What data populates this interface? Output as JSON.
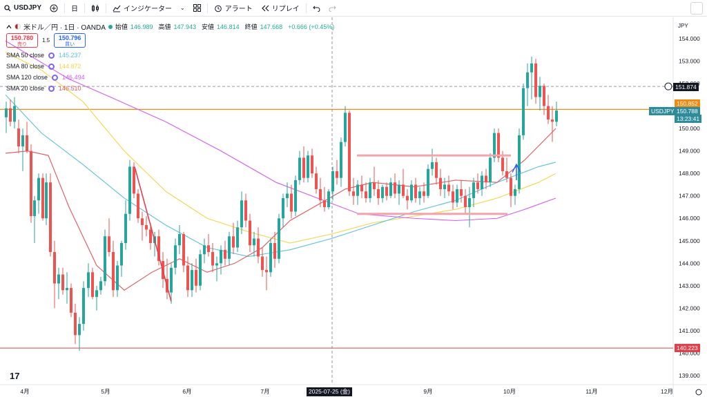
{
  "toolbar": {
    "symbol": "USDJPY",
    "interval": "日",
    "indicators_label": "インジケーター",
    "alert_label": "アラート",
    "replay_label": "リプレイ"
  },
  "legend": {
    "title": "米ドル／円 · 1日 · OANDA",
    "open_label": "始値",
    "open": "146.989",
    "high_label": "高値",
    "high": "147.943",
    "low_label": "安値",
    "low": "146.814",
    "close_label": "終値",
    "close": "147.668",
    "change": "+0.666 (+0.45%)",
    "sell_price": "150.780",
    "sell_label": "売り",
    "spread": "1.5",
    "buy_price": "150.796",
    "buy_label": "買い",
    "smas": [
      {
        "name": "SMA 50 close",
        "value": "145.237",
        "color": "#5bc0de"
      },
      {
        "name": "SMA 80 close",
        "value": "144.872",
        "color": "#f5d547"
      },
      {
        "name": "SMA 120 close",
        "value": "146.494",
        "color": "#d35df0"
      },
      {
        "name": "SMA 20 close",
        "value": "146.510",
        "color": "#e15759"
      }
    ]
  },
  "axis": {
    "currency": "JPY",
    "price_ticks": [
      "154.000",
      "153.000",
      "152.000",
      "151.000",
      "150.000",
      "149.000",
      "148.000",
      "147.000",
      "146.000",
      "145.000",
      "144.000",
      "143.000",
      "142.000",
      "141.000",
      "140.000",
      "139.000"
    ],
    "time_ticks": [
      "4月",
      "5月",
      "6月",
      "7月",
      "9月",
      "10月",
      "11月",
      "12月"
    ],
    "crosshair_time": "2025-07-25 (金)",
    "crosshair_price": "151.874",
    "tags": [
      {
        "text": "150.852",
        "color": "#ef8b12"
      },
      {
        "text": "USDJPY",
        "color": "#2e8b9a"
      },
      {
        "text": "150.788",
        "color": "#2e8b9a"
      },
      {
        "text": "13:23:41",
        "color": "#2e8b9a"
      },
      {
        "text": "140.223",
        "color": "#e0404b"
      }
    ]
  },
  "colors": {
    "up": "#26a69a",
    "down": "#ef5350",
    "hline_orange": "#ef8b12",
    "hline_red": "#e0404b"
  }
}
